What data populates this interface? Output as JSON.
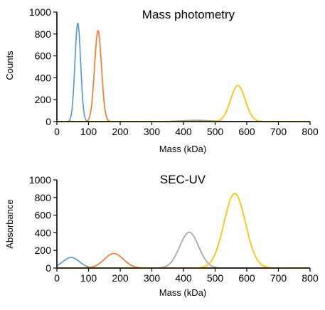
{
  "chart_data": [
    {
      "type": "line",
      "title": "Mass photometry",
      "xlabel": "Mass (kDa)",
      "ylabel": "Counts",
      "xlim": [
        0,
        800
      ],
      "ylim": [
        0,
        1000
      ],
      "xticks": [
        "0",
        "100",
        "200",
        "300",
        "400",
        "500",
        "600",
        "700",
        "800"
      ],
      "yticks": [
        "0",
        "200",
        "400",
        "600",
        "800",
        "1000"
      ],
      "grid": false,
      "series": [
        {
          "color": "#5b9bd5",
          "peak_x": 66,
          "peak_y": 900,
          "width_sd": 9
        },
        {
          "color": "#ed7d31",
          "peak_x": 130,
          "peak_y": 830,
          "width_sd": 11
        },
        {
          "color": "#a5a5a5",
          "peak_x": 440,
          "peak_y": 12,
          "width_sd": 45
        },
        {
          "color": "#ffc000",
          "peak_x": 572,
          "peak_y": 330,
          "width_sd": 23
        }
      ]
    },
    {
      "type": "line",
      "title": "SEC-UV",
      "xlabel": "Mass (kDa)",
      "ylabel": "Absorbance",
      "xlim": [
        0,
        800
      ],
      "ylim": [
        0,
        1000
      ],
      "xticks": [
        "0",
        "100",
        "200",
        "300",
        "400",
        "500",
        "600",
        "700",
        "800"
      ],
      "yticks": [
        "0",
        "200",
        "400",
        "600",
        "800",
        "1000"
      ],
      "grid": false,
      "series": [
        {
          "color": "#5b9bd5",
          "peak_x": 45,
          "peak_y": 120,
          "width_sd": 26
        },
        {
          "color": "#ed7d31",
          "peak_x": 180,
          "peak_y": 165,
          "width_sd": 30
        },
        {
          "color": "#a5a5a5",
          "peak_x": 418,
          "peak_y": 405,
          "width_sd": 30
        },
        {
          "color": "#ffc000",
          "peak_x": 562,
          "peak_y": 845,
          "width_sd": 34
        }
      ]
    }
  ]
}
